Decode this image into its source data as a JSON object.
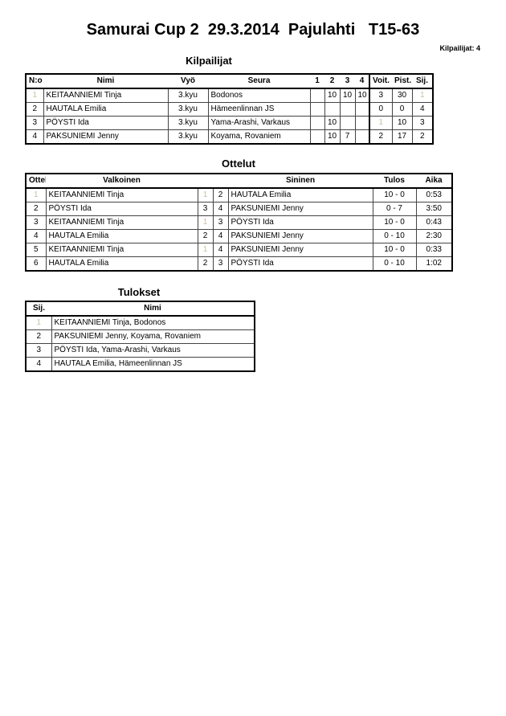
{
  "title": "Samurai Cup 2  29.3.2014  Pajulahti   T15-63",
  "competitor_count": "Kilpailijat: 4",
  "competitors": {
    "heading": "Kilpailijat",
    "columns": [
      "N:o",
      "Nimi",
      "Vyö",
      "Seura",
      "1",
      "2",
      "3",
      "4",
      "Voit.",
      "Pist.",
      "Sij."
    ],
    "rows": [
      [
        "1",
        "KEITAANNIEMI Tinja",
        "3.kyu",
        "Bodonos",
        "",
        "10",
        "10",
        "10",
        "3",
        "30",
        "1"
      ],
      [
        "2",
        "HAUTALA Emilia",
        "3.kyu",
        "Hämeenlinnan JS",
        "",
        "",
        "",
        "",
        "0",
        "0",
        "4"
      ],
      [
        "3",
        "PÖYSTI Ida",
        "3.kyu",
        "Yama-Arashi, Varkaus",
        "",
        "10",
        "",
        "",
        "1",
        "10",
        "3"
      ],
      [
        "4",
        "PAKSUNIEMI Jenny",
        "3.kyu",
        "Koyama, Rovaniem",
        "",
        "10",
        "7",
        "",
        "2",
        "17",
        "2"
      ]
    ]
  },
  "matches": {
    "heading": "Ottelut",
    "columns": [
      "Ottelu",
      "Valkoinen",
      "",
      "",
      "Sininen",
      "Tulos",
      "Aika"
    ],
    "rows": [
      [
        "1",
        "KEITAANNIEMI Tinja",
        "1",
        "2",
        "HAUTALA Emilia",
        "10 - 0",
        "0:53"
      ],
      [
        "2",
        "PÖYSTI Ida",
        "3",
        "4",
        "PAKSUNIEMI Jenny",
        "0 - 7",
        "3:50"
      ],
      [
        "3",
        "KEITAANNIEMI Tinja",
        "1",
        "3",
        "PÖYSTI Ida",
        "10 - 0",
        "0:43"
      ],
      [
        "4",
        "HAUTALA Emilia",
        "2",
        "4",
        "PAKSUNIEMI Jenny",
        "0 - 10",
        "2:30"
      ],
      [
        "5",
        "KEITAANNIEMI Tinja",
        "1",
        "4",
        "PAKSUNIEMI Jenny",
        "10 - 0",
        "0:33"
      ],
      [
        "6",
        "HAUTALA Emilia",
        "2",
        "3",
        "PÖYSTI Ida",
        "0 - 10",
        "1:02"
      ]
    ]
  },
  "results": {
    "heading": "Tulokset",
    "columns": [
      "Sij.",
      "Nimi"
    ],
    "rows": [
      [
        "1",
        "KEITAANNIEMI Tinja, Bodonos"
      ],
      [
        "2",
        "PAKSUNIEMI Jenny, Koyama, Rovaniem"
      ],
      [
        "3",
        "PÖYSTI Ida, Yama-Arashi, Varkaus"
      ],
      [
        "4",
        "HAUTALA Emilia, Hämeenlinnan JS"
      ]
    ]
  }
}
